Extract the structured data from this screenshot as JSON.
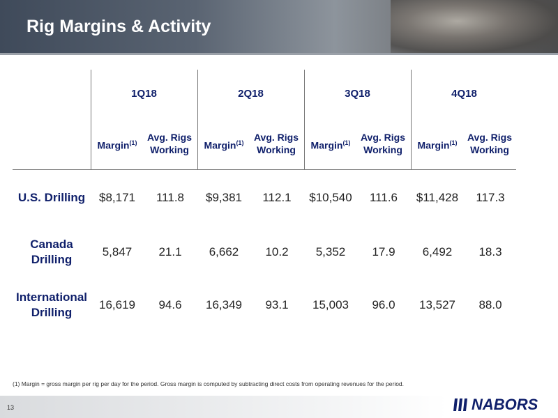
{
  "header": {
    "title": "Rig Margins & Activity"
  },
  "table": {
    "quarters": [
      "1Q18",
      "2Q18",
      "3Q18",
      "4Q18"
    ],
    "subheaders": {
      "margin": "Margin",
      "margin_note": "(1)",
      "rigs": "Avg. Rigs Working"
    },
    "rows": [
      {
        "label": "U.S. Drilling",
        "cells": [
          "$8,171",
          "111.8",
          "$9,381",
          "112.1",
          "$10,540",
          "111.6",
          "$11,428",
          "117.3"
        ]
      },
      {
        "label": "Canada Drilling",
        "cells": [
          "5,847",
          "21.1",
          "6,662",
          "10.2",
          "5,352",
          "17.9",
          "6,492",
          "18.3"
        ]
      },
      {
        "label": "International Drilling",
        "cells": [
          "16,619",
          "94.6",
          "16,349",
          "93.1",
          "15,003",
          "96.0",
          "13,527",
          "88.0"
        ]
      }
    ]
  },
  "footnote": "(1) Margin = gross margin per rig per day for the period.  Gross margin is computed by subtracting direct costs from operating revenues for the period.",
  "footer": {
    "page": "13",
    "logo": "NABORS"
  }
}
